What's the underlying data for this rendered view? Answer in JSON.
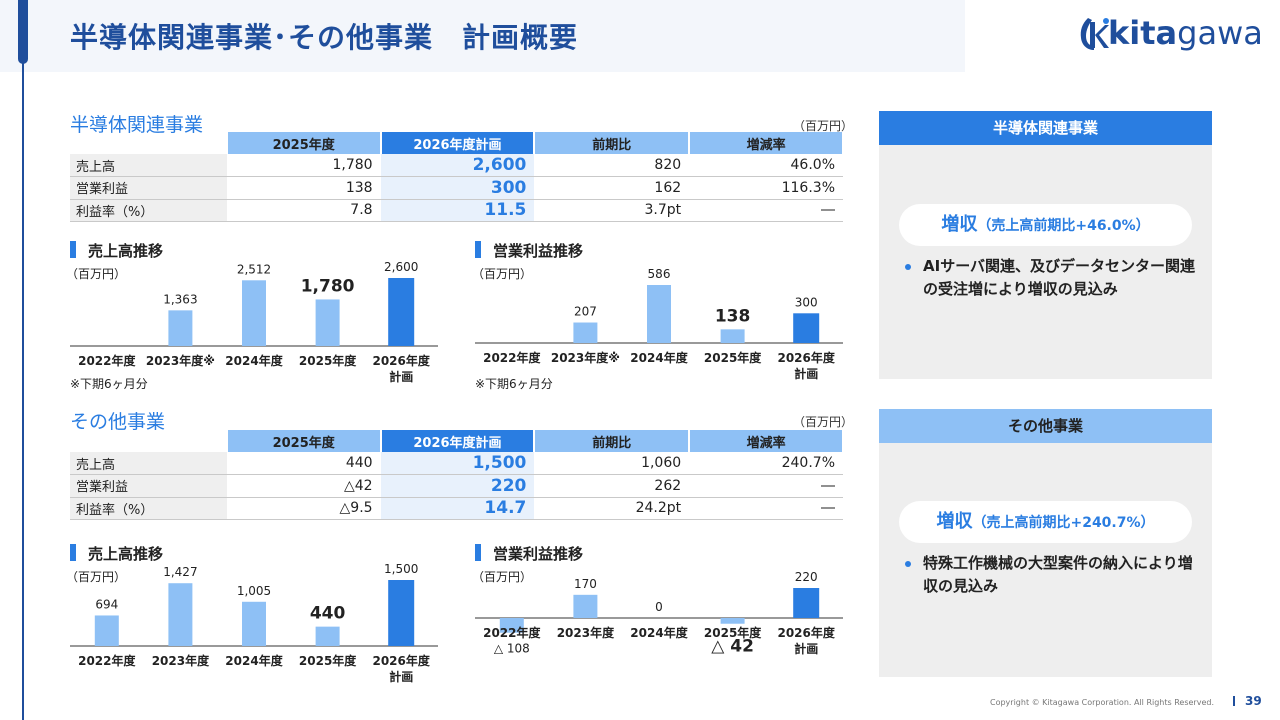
{
  "page": {
    "title": "半導体関連事業･その他事業　計画概要",
    "logo_bold": "kita",
    "logo_rest": "gawa",
    "footer": "Copyright © Kitagawa Corporation. All Rights Reserved.",
    "page_number": "39"
  },
  "semi": {
    "title": "半導体関連事業",
    "unit": "（百万円）",
    "table": {
      "headers": [
        "2025年度",
        "2026年度計画",
        "前期比",
        "増減率"
      ],
      "rows": [
        {
          "label": "売上高",
          "cells": [
            "1,780",
            "2,600",
            "820",
            "46.0%"
          ]
        },
        {
          "label": "営業利益",
          "cells": [
            "138",
            "300",
            "162",
            "116.3%"
          ]
        },
        {
          "label": "利益率（%）",
          "cells": [
            "7.8",
            "11.5",
            "3.7pt",
            "―"
          ]
        }
      ]
    },
    "sales_chart": {
      "title": "売上高推移",
      "unit": "（百万円）",
      "note": "※下期6ヶ月分"
    },
    "profit_chart": {
      "title": "営業利益推移",
      "unit": "（百万円）",
      "note": "※下期6ヶ月分"
    },
    "panel": {
      "head": "半導体関連事業",
      "pill_main": "増収",
      "pill_sub": "（売上高前期比+46.0%）",
      "bullet": "AIサーバ関連、及びデータセンター関連の受注増により増収の見込み"
    }
  },
  "other": {
    "title": "その他事業",
    "unit": "（百万円）",
    "table": {
      "headers": [
        "2025年度",
        "2026年度計画",
        "前期比",
        "増減率"
      ],
      "rows": [
        {
          "label": "売上高",
          "cells": [
            "440",
            "1,500",
            "1,060",
            "240.7%"
          ]
        },
        {
          "label": "営業利益",
          "cells": [
            "△42",
            "220",
            "262",
            "―"
          ]
        },
        {
          "label": "利益率（%）",
          "cells": [
            "△9.5",
            "14.7",
            "24.2pt",
            "―"
          ]
        }
      ]
    },
    "sales_chart": {
      "title": "売上高推移",
      "unit": "（百万円）"
    },
    "profit_chart": {
      "title": "営業利益推移",
      "unit": "（百万円）"
    },
    "panel": {
      "head": "その他事業",
      "pill_main": "増収",
      "pill_sub": "（売上高前期比+240.7%）",
      "bullet": "特殊工作機械の大型案件の納入により増収の見込み"
    }
  },
  "colors": {
    "primary": "#2a7de1",
    "light": "#8ec0f5",
    "navy": "#1f4e9c"
  },
  "chart_data": [
    {
      "id": "semi_sales",
      "type": "bar",
      "title": "売上高推移",
      "categories": [
        "2022年度",
        "2023年度※",
        "2024年度",
        "2025年度",
        "2026年度\n計画"
      ],
      "values": [
        null,
        1363,
        2512,
        1780,
        2600
      ],
      "labels": [
        "",
        "1,363",
        "2,512",
        "1,780",
        "2,600"
      ],
      "ylim": [
        0,
        2600
      ],
      "highlight_index": 4,
      "emphasis_index": 3
    },
    {
      "id": "semi_profit",
      "type": "bar",
      "title": "営業利益推移",
      "categories": [
        "2022年度",
        "2023年度※",
        "2024年度",
        "2025年度",
        "2026年度\n計画"
      ],
      "values": [
        null,
        207,
        586,
        138,
        300
      ],
      "labels": [
        "",
        "207",
        "586",
        "138",
        "300"
      ],
      "ylim": [
        0,
        586
      ],
      "highlight_index": 4,
      "emphasis_index": 3
    },
    {
      "id": "other_sales",
      "type": "bar",
      "title": "売上高推移",
      "categories": [
        "2022年度",
        "2023年度",
        "2024年度",
        "2025年度",
        "2026年度\n計画"
      ],
      "values": [
        694,
        1427,
        1005,
        440,
        1500
      ],
      "labels": [
        "694",
        "1,427",
        "1,005",
        "440",
        "1,500"
      ],
      "ylim": [
        0,
        1500
      ],
      "highlight_index": 4,
      "emphasis_index": 3
    },
    {
      "id": "other_profit",
      "type": "bar",
      "title": "営業利益推移",
      "categories": [
        "2022年度",
        "2023年度",
        "2024年度",
        "2025年度",
        "2026年度\n計画"
      ],
      "values": [
        -108,
        170,
        0,
        -42,
        220
      ],
      "labels": [
        "△ 108",
        "170",
        "0",
        "△ 42",
        "220"
      ],
      "ylim": [
        -108,
        220
      ],
      "highlight_index": 4,
      "emphasis_index": 3
    }
  ]
}
